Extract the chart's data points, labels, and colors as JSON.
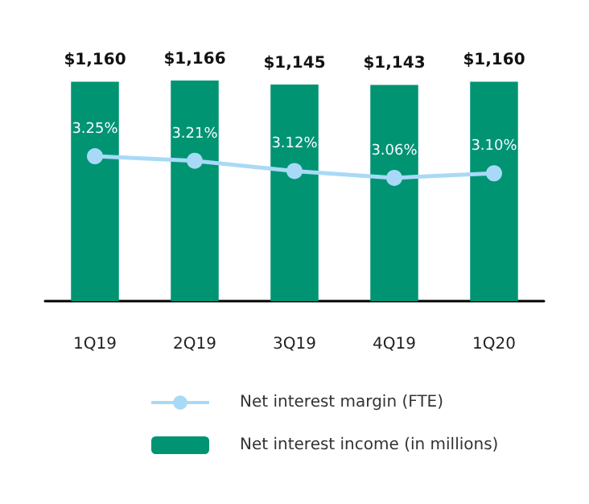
{
  "chart_data": {
    "type": "bar",
    "categories": [
      "1Q19",
      "2Q19",
      "3Q19",
      "4Q19",
      "1Q20"
    ],
    "series": [
      {
        "name": "Net interest margin (FTE)",
        "type": "line",
        "axis": "y2",
        "color": "#a8daf7",
        "values": [
          3.25,
          3.21,
          3.12,
          3.06,
          3.1
        ],
        "value_labels": [
          "3.25%",
          "3.21%",
          "3.12%",
          "3.06%",
          "3.10%"
        ]
      },
      {
        "name": "Net interest income (in millions)",
        "color": "#009473",
        "values": [
          1160,
          1166,
          1145,
          1143,
          1160
        ],
        "value_labels": [
          "$1,160",
          "$1,166",
          "$1,145",
          "$1,143",
          "$1,160"
        ]
      }
    ],
    "legend": "bottom",
    "marker": "circle"
  }
}
